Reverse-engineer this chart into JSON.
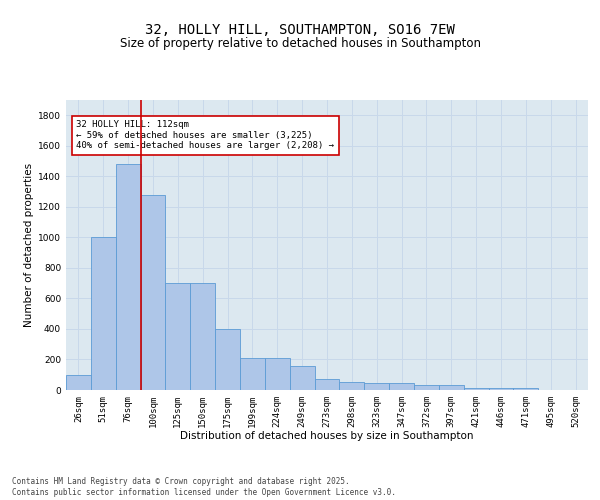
{
  "title_line1": "32, HOLLY HILL, SOUTHAMPTON, SO16 7EW",
  "title_line2": "Size of property relative to detached houses in Southampton",
  "xlabel": "Distribution of detached houses by size in Southampton",
  "ylabel": "Number of detached properties",
  "categories": [
    "26sqm",
    "51sqm",
    "76sqm",
    "100sqm",
    "125sqm",
    "150sqm",
    "175sqm",
    "199sqm",
    "224sqm",
    "249sqm",
    "273sqm",
    "298sqm",
    "323sqm",
    "347sqm",
    "372sqm",
    "397sqm",
    "421sqm",
    "446sqm",
    "471sqm",
    "495sqm",
    "520sqm"
  ],
  "values": [
    100,
    1000,
    1480,
    1280,
    700,
    700,
    400,
    210,
    210,
    160,
    75,
    55,
    45,
    45,
    30,
    30,
    15,
    10,
    15,
    0,
    0
  ],
  "bar_color": "#aec6e8",
  "bar_edge_color": "#5b9bd5",
  "vline_x_index": 3,
  "vline_color": "#cc0000",
  "annotation_text": "32 HOLLY HILL: 112sqm\n← 59% of detached houses are smaller (3,225)\n40% of semi-detached houses are larger (2,208) →",
  "annotation_box_facecolor": "#ffffff",
  "annotation_box_edgecolor": "#cc0000",
  "ylim": [
    0,
    1900
  ],
  "yticks": [
    0,
    200,
    400,
    600,
    800,
    1000,
    1200,
    1400,
    1600,
    1800
  ],
  "grid_color": "#c8d8ea",
  "background_color": "#dce8f0",
  "footer_text": "Contains HM Land Registry data © Crown copyright and database right 2025.\nContains public sector information licensed under the Open Government Licence v3.0.",
  "title_fontsize": 10,
  "subtitle_fontsize": 8.5,
  "axis_label_fontsize": 7.5,
  "tick_fontsize": 6.5,
  "annotation_fontsize": 6.5,
  "footer_fontsize": 5.5
}
